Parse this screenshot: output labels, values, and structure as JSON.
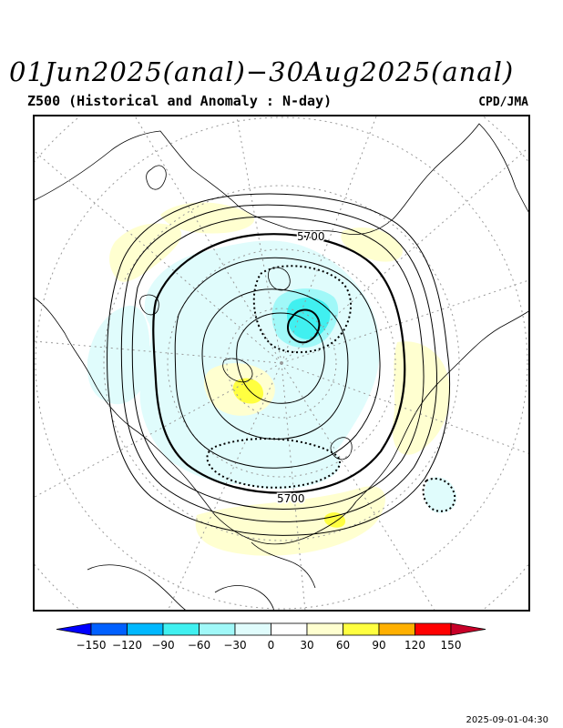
{
  "header": {
    "title": "01Jun2025(anal)−30Aug2025(anal)",
    "subtitle": "Z500 (Historical and Anomaly : N-day)",
    "credit": "CPD/JMA"
  },
  "map": {
    "projection": "north-polar-stereographic",
    "field": "Z500",
    "contour_labels": [
      "5700",
      "5700"
    ],
    "anomaly_colors": {
      "light_cyan": "#e0fcfc",
      "cyan": "#a0f8f8",
      "strong_cyan": "#40f0f0",
      "light_yellow": "#ffffd0",
      "yellow": "#ffff40"
    }
  },
  "colorbar": {
    "ticks": [
      "−150",
      "−120",
      "−90",
      "−60",
      "−30",
      "0",
      "30",
      "60",
      "90",
      "120",
      "150"
    ],
    "colors": [
      "#0000ff",
      "#0060ff",
      "#00b8ff",
      "#40f0f0",
      "#a0f8f8",
      "#e0fcfc",
      "#ffffff",
      "#ffffd0",
      "#ffff40",
      "#ffb000",
      "#ff0000",
      "#c80028"
    ]
  },
  "footer": {
    "timestamp": "2025-09-01-04:30"
  }
}
